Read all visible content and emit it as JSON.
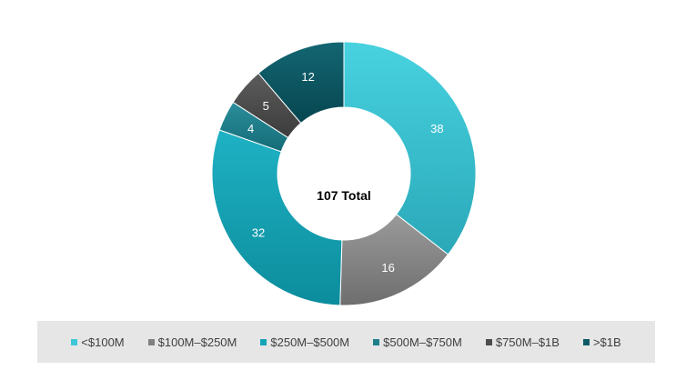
{
  "chart_data": {
    "type": "pie",
    "variant": "donut",
    "center_label": "107 Total",
    "legend_position": "bottom",
    "categories": [
      "<$100M",
      "$100M–$250M",
      "$250M–$500M",
      "$500M–$750M",
      "$750M–$1B",
      ">$1B"
    ],
    "values": [
      38,
      16,
      32,
      4,
      5,
      12
    ],
    "colors": [
      "#3cc8d8",
      "#808080",
      "#15a5b8",
      "#1e7f8c",
      "#4d4d4d",
      "#0c5a66"
    ],
    "gradient_light": [
      "#48d2e0",
      "#9a9a9a",
      "#1eb2c4",
      "#2a8e9a",
      "#5c5c5c",
      "#136672"
    ],
    "gradient_dark": [
      "#2aa8b8",
      "#6e6e6e",
      "#0c8c9c",
      "#146c78",
      "#3c3c3c",
      "#064650"
    ]
  }
}
